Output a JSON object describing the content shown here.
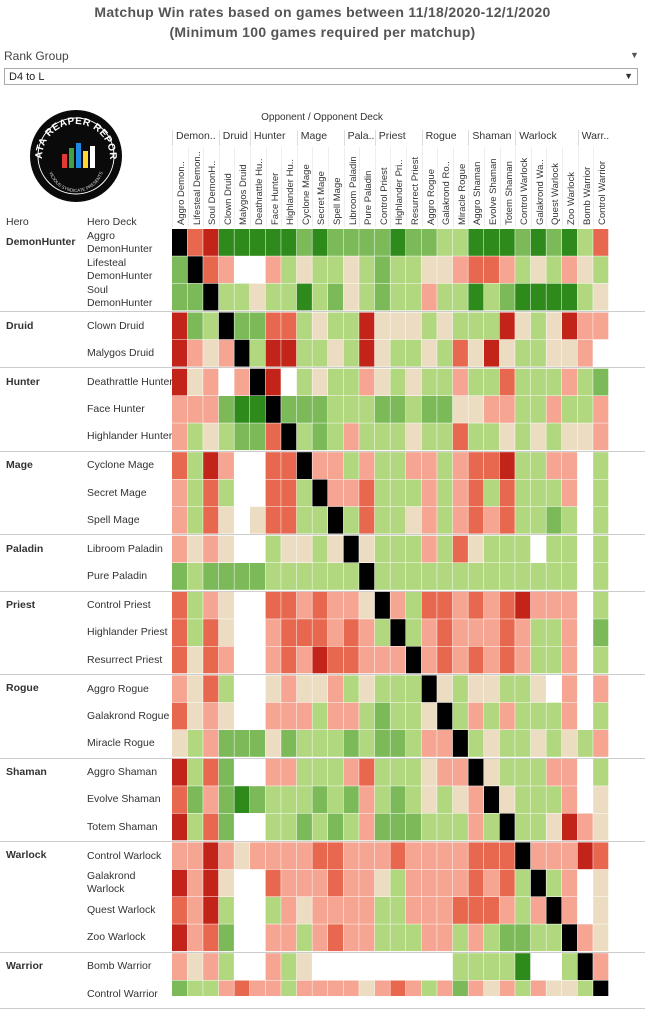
{
  "title_line1": "Matchup Win rates based on games between 11/18/2020-12/1/2020",
  "title_line2": "(Minimum 100 games required per matchup)",
  "filter": {
    "label": "Rank Group",
    "value": "D4 to L"
  },
  "logo": {
    "text_top": "DATA REAPER REPORT",
    "text_bottom": "VICIOUS SYNDICATE PRESENTS"
  },
  "axis": {
    "column_title": "Opponent  /  Opponent Deck",
    "row_hero_label": "Hero",
    "row_deck_label": "Hero Deck"
  },
  "colors": {
    "strong_fav": "#2f8a1c",
    "fav": "#7cba59",
    "slight_fav": "#b1d77f",
    "even": "#ecdcc2",
    "neutral": "#ffffff",
    "slight_unfav": "#f5a591",
    "unfav": "#e8684f",
    "strong_unfav": "#c3241a",
    "mirror": "#000000"
  },
  "chart_data": {
    "type": "heatmap",
    "opponent_groups": [
      {
        "label": "Demon..",
        "span": 3
      },
      {
        "label": "Druid",
        "span": 2
      },
      {
        "label": "Hunter",
        "span": 3
      },
      {
        "label": "Mage",
        "span": 3
      },
      {
        "label": "Pala..",
        "span": 2
      },
      {
        "label": "Priest",
        "span": 3
      },
      {
        "label": "Rogue",
        "span": 3
      },
      {
        "label": "Shaman",
        "span": 3
      },
      {
        "label": "Warlock",
        "span": 4
      },
      {
        "label": "Warr..",
        "span": 2
      }
    ],
    "opponent_decks": [
      "Aggro Demon..",
      "Lifesteal Demon..",
      "Soul DemonH..",
      "Clown Druid",
      "Malygos Druid",
      "Deathrattle Hu..",
      "Face Hunter",
      "Highlander Hu..",
      "Cyclone Mage",
      "Secret Mage",
      "Spell Mage",
      "Libroom Paladin",
      "Pure Paladin",
      "Control Priest",
      "Highlander Pri..",
      "Resurrect Priest",
      "Aggro Rogue",
      "Galakrond Ro..",
      "Miracle Rogue",
      "Aggro Shaman",
      "Evolve Shaman",
      "Totem Shaman",
      "Control Warlock",
      "Galakrond Wa..",
      "Quest Warlock",
      "Zoo Warlock",
      "Bomb Warrior",
      "Control Warrior"
    ],
    "hero_groups": [
      {
        "hero": "DemonHunter",
        "decks": [
          "Aggro DemonHunter",
          "Lifesteal DemonHunter",
          "Soul DemonHunter"
        ]
      },
      {
        "hero": "Druid",
        "decks": [
          "Clown Druid",
          "Malygos Druid"
        ]
      },
      {
        "hero": "Hunter",
        "decks": [
          "Deathrattle Hunter",
          "Face Hunter",
          "Highlander Hunter"
        ]
      },
      {
        "hero": "Mage",
        "decks": [
          "Cyclone Mage",
          "Secret Mage",
          "Spell Mage"
        ]
      },
      {
        "hero": "Paladin",
        "decks": [
          "Libroom Paladin",
          "Pure Paladin"
        ]
      },
      {
        "hero": "Priest",
        "decks": [
          "Control Priest",
          "Highlander Priest",
          "Resurrect Priest"
        ]
      },
      {
        "hero": "Rogue",
        "decks": [
          "Aggro Rogue",
          "Galakrond Rogue",
          "Miracle Rogue"
        ]
      },
      {
        "hero": "Shaman",
        "decks": [
          "Aggro Shaman",
          "Evolve Shaman",
          "Totem Shaman"
        ]
      },
      {
        "hero": "Warlock",
        "decks": [
          "Control Warlock",
          "Galakrond Warlock",
          "Quest Warlock",
          "Zoo Warlock"
        ]
      },
      {
        "hero": "Warrior",
        "decks": [
          "Bomb Warrior",
          "Control Warrior"
        ]
      }
    ],
    "legend_scale": "cell value: 3 strong favored, 2 favored, 1 slightly favored, 0 even, -1 slightly unfavored, -2 unfavored, -3 strongly unfavored, null no data, M mirror",
    "matrix": [
      [
        "M",
        -2,
        -3,
        3,
        3,
        3,
        3,
        3,
        2,
        3,
        2,
        2,
        2,
        2,
        3,
        2,
        2,
        1,
        1,
        3,
        3,
        3,
        2,
        3,
        2,
        3,
        1,
        -2
      ],
      [
        2,
        "M",
        -2,
        -1,
        null,
        null,
        -1,
        1,
        0,
        1,
        1,
        0,
        1,
        2,
        1,
        1,
        0,
        0,
        -1,
        -2,
        -2,
        -1,
        1,
        0,
        1,
        -1,
        0,
        1
      ],
      [
        2,
        2,
        "M",
        1,
        1,
        0,
        1,
        1,
        3,
        1,
        2,
        0,
        1,
        2,
        1,
        1,
        -1,
        1,
        1,
        3,
        1,
        2,
        3,
        3,
        3,
        3,
        1,
        0
      ],
      [
        -3,
        2,
        1,
        "M",
        2,
        2,
        -2,
        -2,
        1,
        0,
        1,
        1,
        -3,
        0,
        0,
        0,
        1,
        0,
        1,
        1,
        1,
        -3,
        0,
        1,
        0,
        -3,
        -1,
        -1
      ],
      [
        -3,
        -1,
        0,
        -1,
        "M",
        1,
        -3,
        -3,
        1,
        1,
        0,
        1,
        -3,
        0,
        1,
        1,
        0,
        1,
        -2,
        0,
        -3,
        0,
        1,
        1,
        0,
        0,
        -1,
        null
      ],
      [
        -3,
        0,
        -1,
        null,
        -1,
        "M",
        -3,
        null,
        1,
        0,
        1,
        1,
        -1,
        0,
        1,
        0,
        1,
        1,
        -1,
        1,
        1,
        -2,
        1,
        1,
        1,
        -1,
        1,
        2
      ],
      [
        -1,
        -1,
        -1,
        2,
        3,
        3,
        "M",
        2,
        2,
        2,
        1,
        1,
        1,
        2,
        2,
        1,
        2,
        2,
        0,
        0,
        -1,
        -1,
        1,
        1,
        -1,
        1,
        1,
        -1
      ],
      [
        -1,
        1,
        0,
        1,
        2,
        2,
        -2,
        "M",
        1,
        2,
        1,
        -1,
        1,
        1,
        1,
        0,
        1,
        1,
        -2,
        1,
        1,
        0,
        1,
        0,
        1,
        0,
        0,
        -1
      ],
      [
        -2,
        1,
        -3,
        -1,
        null,
        null,
        -2,
        -2,
        "M",
        -1,
        -1,
        1,
        -1,
        1,
        1,
        -1,
        -1,
        1,
        -1,
        -2,
        -2,
        -3,
        1,
        1,
        -1,
        -1,
        null,
        1
      ],
      [
        -1,
        1,
        -2,
        1,
        null,
        null,
        -2,
        -2,
        1,
        "M",
        -1,
        -1,
        -2,
        1,
        1,
        1,
        -1,
        1,
        -1,
        -2,
        1,
        -2,
        1,
        1,
        1,
        -1,
        null,
        1
      ],
      [
        -1,
        1,
        -2,
        0,
        null,
        0,
        -2,
        -2,
        1,
        1,
        "M",
        1,
        -2,
        1,
        1,
        0,
        -1,
        1,
        -1,
        -2,
        -1,
        -2,
        1,
        1,
        2,
        1,
        null,
        1
      ],
      [
        -1,
        0,
        -1,
        0,
        null,
        null,
        1,
        0,
        0,
        1,
        0,
        "M",
        0,
        1,
        1,
        1,
        -1,
        1,
        -2,
        0,
        1,
        1,
        1,
        null,
        1,
        1,
        null,
        1
      ],
      [
        2,
        1,
        2,
        2,
        2,
        2,
        1,
        1,
        1,
        1,
        1,
        1,
        "M",
        1,
        1,
        1,
        1,
        1,
        1,
        1,
        1,
        1,
        1,
        1,
        1,
        1,
        null,
        1
      ],
      [
        -2,
        1,
        -1,
        0,
        null,
        null,
        -2,
        -2,
        -1,
        -2,
        -1,
        -1,
        0,
        "M",
        -1,
        1,
        -2,
        -2,
        -1,
        -2,
        -1,
        -2,
        -3,
        -1,
        -1,
        -1,
        null,
        1
      ],
      [
        -2,
        1,
        -2,
        0,
        null,
        null,
        -1,
        -2,
        -2,
        -2,
        -1,
        -2,
        -1,
        1,
        "M",
        1,
        -1,
        -2,
        -1,
        -1,
        -1,
        -2,
        -1,
        1,
        1,
        -1,
        null,
        2
      ],
      [
        -2,
        0,
        -2,
        -1,
        null,
        null,
        -1,
        -2,
        -1,
        -3,
        -2,
        -2,
        -1,
        -1,
        -1,
        "M",
        -1,
        -2,
        -1,
        -2,
        -1,
        -2,
        -1,
        1,
        1,
        -1,
        null,
        1
      ],
      [
        -1,
        0,
        -2,
        1,
        null,
        null,
        0,
        -1,
        0,
        0,
        -1,
        1,
        0,
        1,
        1,
        1,
        "M",
        0,
        1,
        0,
        0,
        1,
        1,
        0,
        null,
        -1,
        null,
        -1
      ],
      [
        -2,
        0,
        -1,
        0,
        null,
        null,
        -1,
        -1,
        -1,
        1,
        -1,
        -1,
        1,
        2,
        1,
        1,
        0,
        "M",
        1,
        -1,
        1,
        -1,
        1,
        1,
        1,
        -1,
        null,
        1
      ],
      [
        0,
        1,
        -1,
        2,
        2,
        2,
        0,
        2,
        1,
        1,
        1,
        2,
        1,
        2,
        2,
        1,
        -1,
        -1,
        "M",
        1,
        0,
        1,
        1,
        0,
        1,
        0,
        1,
        -1
      ],
      [
        -3,
        1,
        -2,
        2,
        null,
        null,
        -1,
        -1,
        1,
        1,
        1,
        -1,
        -2,
        1,
        1,
        1,
        0,
        -1,
        -1,
        "M",
        0,
        1,
        1,
        1,
        -1,
        -1,
        null,
        1
      ],
      [
        -2,
        2,
        -1,
        2,
        3,
        2,
        1,
        1,
        1,
        2,
        1,
        2,
        -1,
        1,
        2,
        1,
        0,
        1,
        0,
        -1,
        "M",
        0,
        1,
        1,
        1,
        -1,
        null,
        0
      ],
      [
        -3,
        1,
        -2,
        2,
        null,
        null,
        1,
        1,
        2,
        1,
        2,
        1,
        -1,
        2,
        2,
        2,
        1,
        1,
        1,
        -1,
        1,
        "M",
        1,
        1,
        0,
        -3,
        -1,
        0
      ],
      [
        -1,
        -1,
        -3,
        -1,
        0,
        -1,
        -1,
        -1,
        -1,
        -2,
        -2,
        -1,
        -1,
        -1,
        -2,
        -1,
        -1,
        -1,
        -1,
        -2,
        -2,
        -2,
        "M",
        -1,
        -1,
        -1,
        -3,
        -2
      ],
      [
        -3,
        -1,
        -3,
        0,
        null,
        null,
        -2,
        -1,
        -1,
        -1,
        -2,
        -1,
        -1,
        0,
        1,
        -1,
        -1,
        -1,
        -1,
        -2,
        -1,
        -2,
        1,
        "M",
        1,
        -1,
        null,
        0
      ],
      [
        -2,
        -1,
        -3,
        1,
        null,
        null,
        1,
        -1,
        0,
        -1,
        -1,
        -1,
        -1,
        1,
        1,
        -1,
        -1,
        -1,
        -2,
        -2,
        -2,
        -1,
        1,
        -1,
        "M",
        -1,
        null,
        0
      ],
      [
        -3,
        -1,
        -2,
        2,
        null,
        null,
        -1,
        -1,
        1,
        -1,
        -2,
        -1,
        -1,
        1,
        1,
        1,
        -1,
        -1,
        1,
        -1,
        1,
        2,
        2,
        1,
        1,
        "M",
        -1,
        0
      ],
      [
        -1,
        0,
        -1,
        1,
        null,
        null,
        -1,
        1,
        0,
        null,
        null,
        null,
        null,
        null,
        null,
        null,
        null,
        null,
        1,
        1,
        1,
        1,
        3,
        null,
        null,
        1,
        "M",
        -1
      ],
      [
        2,
        1,
        1,
        -1,
        -2,
        -1,
        -1,
        1,
        -1,
        -1,
        -1,
        -1,
        0,
        -1,
        -2,
        -1,
        1,
        -1,
        2,
        -1,
        0,
        -1,
        1,
        -1,
        0,
        0,
        1,
        "M"
      ]
    ]
  }
}
